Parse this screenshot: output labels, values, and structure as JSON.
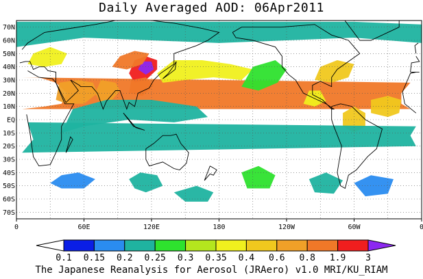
{
  "title": "Daily Averaged AOD: 06Apr2011",
  "footer": "The Japanese Reanalysis for Aerosol (JRAero) v1.0 MRI/KU_RIAM",
  "map": {
    "lon_range": [
      0,
      360
    ],
    "lat_range": [
      -75,
      75
    ],
    "lat_labels": [
      "70N",
      "60N",
      "50N",
      "40N",
      "30N",
      "20N",
      "10N",
      "EQ",
      "10S",
      "20S",
      "30S",
      "40S",
      "50S",
      "60S",
      "70S"
    ],
    "lat_values": [
      70,
      60,
      50,
      40,
      30,
      20,
      10,
      0,
      -10,
      -20,
      -30,
      -40,
      -50,
      -60,
      -70
    ],
    "lon_labels": [
      "0",
      "60E",
      "120E",
      "180",
      "120W",
      "60W",
      "0"
    ],
    "lon_values": [
      0,
      60,
      120,
      180,
      240,
      300,
      360
    ],
    "grid": "dotted",
    "coastline_color": "#000000"
  },
  "colorbar": {
    "levels": [
      "0.1",
      "0.15",
      "0.2",
      "0.25",
      "0.3",
      "0.35",
      "0.4",
      "0.6",
      "0.8",
      "1.9",
      "3"
    ],
    "colors": [
      "#ffffff",
      "#0a1ee6",
      "#2a8cf0",
      "#1fb3a0",
      "#2ee22e",
      "#b4e61e",
      "#f0f01e",
      "#f0c81e",
      "#f0a028",
      "#f07828",
      "#f01e1e",
      "#8c28f0"
    ]
  },
  "aod_regions": [
    {
      "name": "saharan-dust",
      "level": 9,
      "pts": [
        [
          -18,
          12
        ],
        [
          -18,
          20
        ],
        [
          -10,
          28
        ],
        [
          5,
          32
        ],
        [
          20,
          32
        ],
        [
          35,
          28
        ],
        [
          45,
          20
        ],
        [
          40,
          12
        ],
        [
          25,
          10
        ],
        [
          5,
          8
        ],
        [
          -10,
          8
        ]
      ]
    },
    {
      "name": "arabian-dust",
      "level": 8,
      "pts": [
        [
          35,
          15
        ],
        [
          38,
          28
        ],
        [
          55,
          30
        ],
        [
          68,
          28
        ],
        [
          72,
          20
        ],
        [
          60,
          12
        ],
        [
          45,
          12
        ]
      ]
    },
    {
      "name": "india-haze",
      "level": 8,
      "pts": [
        [
          70,
          20
        ],
        [
          75,
          30
        ],
        [
          88,
          28
        ],
        [
          92,
          22
        ],
        [
          85,
          15
        ],
        [
          75,
          12
        ]
      ]
    },
    {
      "name": "east-asia-dust",
      "level": 10,
      "pts": [
        [
          100,
          35
        ],
        [
          105,
          45
        ],
        [
          115,
          48
        ],
        [
          125,
          45
        ],
        [
          125,
          38
        ],
        [
          115,
          30
        ],
        [
          105,
          28
        ]
      ]
    },
    {
      "name": "east-asia-dust-core",
      "level": 11,
      "pts": [
        [
          108,
          38
        ],
        [
          112,
          44
        ],
        [
          120,
          44
        ],
        [
          122,
          38
        ],
        [
          115,
          34
        ]
      ]
    },
    {
      "name": "mongolia-dust",
      "level": 9,
      "pts": [
        [
          85,
          40
        ],
        [
          92,
          48
        ],
        [
          105,
          52
        ],
        [
          118,
          50
        ],
        [
          112,
          42
        ],
        [
          98,
          38
        ]
      ]
    },
    {
      "name": "china-south",
      "level": 9,
      "pts": [
        [
          100,
          20
        ],
        [
          102,
          30
        ],
        [
          115,
          32
        ],
        [
          122,
          26
        ],
        [
          112,
          18
        ]
      ]
    },
    {
      "name": "pacific-plume",
      "level": 6,
      "pts": [
        [
          125,
          35
        ],
        [
          140,
          45
        ],
        [
          165,
          45
        ],
        [
          190,
          42
        ],
        [
          210,
          38
        ],
        [
          200,
          30
        ],
        [
          175,
          32
        ],
        [
          150,
          30
        ],
        [
          130,
          28
        ]
      ]
    },
    {
      "name": "europe-haze",
      "level": 6,
      "pts": [
        [
          10,
          42
        ],
        [
          15,
          50
        ],
        [
          30,
          55
        ],
        [
          45,
          50
        ],
        [
          40,
          42
        ],
        [
          25,
          40
        ]
      ]
    },
    {
      "name": "atlantic-plume",
      "level": 7,
      "pts": [
        [
          -45,
          5
        ],
        [
          -45,
          15
        ],
        [
          -30,
          18
        ],
        [
          -18,
          15
        ],
        [
          -20,
          5
        ],
        [
          -30,
          2
        ]
      ]
    },
    {
      "name": "south-america-smoke",
      "level": 7,
      "pts": [
        [
          -70,
          -5
        ],
        [
          -70,
          5
        ],
        [
          -60,
          10
        ],
        [
          -50,
          5
        ],
        [
          -50,
          -5
        ],
        [
          -60,
          -10
        ]
      ]
    },
    {
      "name": "north-america-east",
      "level": 7,
      "pts": [
        [
          -95,
          30
        ],
        [
          -90,
          40
        ],
        [
          -75,
          45
        ],
        [
          -60,
          42
        ],
        [
          -65,
          32
        ],
        [
          -80,
          28
        ]
      ]
    },
    {
      "name": "central-america",
      "level": 6,
      "pts": [
        [
          -105,
          12
        ],
        [
          -100,
          22
        ],
        [
          -90,
          22
        ],
        [
          -85,
          14
        ],
        [
          -95,
          10
        ]
      ]
    },
    {
      "name": "north-pacific-east",
      "level": 4,
      "pts": [
        [
          200,
          25
        ],
        [
          210,
          40
        ],
        [
          230,
          45
        ],
        [
          240,
          38
        ],
        [
          232,
          28
        ],
        [
          215,
          22
        ]
      ]
    },
    {
      "name": "arctic-band",
      "level": 3,
      "pts": [
        [
          0,
          55
        ],
        [
          60,
          62
        ],
        [
          120,
          60
        ],
        [
          180,
          58
        ],
        [
          240,
          60
        ],
        [
          300,
          62
        ],
        [
          360,
          58
        ],
        [
          360,
          72
        ],
        [
          300,
          74
        ],
        [
          200,
          74
        ],
        [
          100,
          74
        ],
        [
          0,
          74
        ]
      ]
    },
    {
      "name": "tropics-band",
      "level": 3,
      "pts": [
        [
          40,
          -10
        ],
        [
          60,
          -5
        ],
        [
          100,
          0
        ],
        [
          140,
          -2
        ],
        [
          170,
          2
        ],
        [
          160,
          10
        ],
        [
          120,
          15
        ],
        [
          80,
          15
        ],
        [
          50,
          8
        ]
      ]
    },
    {
      "name": "south-atlantic",
      "level": 3,
      "pts": [
        [
          -10,
          -12
        ],
        [
          -5,
          -5
        ],
        [
          10,
          -2
        ],
        [
          15,
          -15
        ],
        [
          5,
          -25
        ],
        [
          -5,
          -20
        ]
      ]
    },
    {
      "name": "southern-ocean-1",
      "level": 2,
      "pts": [
        [
          30,
          -48
        ],
        [
          40,
          -42
        ],
        [
          55,
          -40
        ],
        [
          70,
          -45
        ],
        [
          60,
          -52
        ],
        [
          40,
          -52
        ]
      ]
    },
    {
      "name": "southern-ocean-2",
      "level": 3,
      "pts": [
        [
          100,
          -45
        ],
        [
          110,
          -40
        ],
        [
          125,
          -42
        ],
        [
          130,
          -50
        ],
        [
          115,
          -55
        ],
        [
          105,
          -52
        ]
      ]
    },
    {
      "name": "southern-ocean-3",
      "level": 4,
      "pts": [
        [
          200,
          -40
        ],
        [
          215,
          -35
        ],
        [
          230,
          -42
        ],
        [
          225,
          -52
        ],
        [
          205,
          -52
        ]
      ]
    },
    {
      "name": "southern-ocean-4",
      "level": 3,
      "pts": [
        [
          260,
          -45
        ],
        [
          275,
          -40
        ],
        [
          290,
          -46
        ],
        [
          282,
          -56
        ],
        [
          265,
          -55
        ]
      ]
    },
    {
      "name": "southern-ocean-5",
      "level": 2,
      "pts": [
        [
          300,
          -48
        ],
        [
          315,
          -42
        ],
        [
          335,
          -45
        ],
        [
          330,
          -56
        ],
        [
          310,
          -58
        ]
      ]
    },
    {
      "name": "southern-ocean-6",
      "level": 3,
      "pts": [
        [
          140,
          -55
        ],
        [
          160,
          -50
        ],
        [
          175,
          -55
        ],
        [
          170,
          -62
        ],
        [
          150,
          -62
        ]
      ]
    }
  ],
  "coastlines": [
    [
      [
        -17,
        21
      ],
      [
        -10,
        35
      ],
      [
        -5,
        36
      ],
      [
        10,
        37
      ],
      [
        20,
        32
      ],
      [
        32,
        31
      ],
      [
        35,
        28
      ],
      [
        43,
        12
      ],
      [
        51,
        12
      ],
      [
        40,
        -5
      ],
      [
        40,
        -15
      ],
      [
        35,
        -25
      ],
      [
        30,
        -34
      ],
      [
        20,
        -35
      ],
      [
        15,
        -28
      ],
      [
        12,
        -10
      ],
      [
        9,
        4
      ],
      [
        -5,
        5
      ],
      [
        -15,
        12
      ],
      [
        -17,
        21
      ]
    ],
    [
      [
        -10,
        36
      ],
      [
        -9,
        43
      ],
      [
        -2,
        44
      ],
      [
        -5,
        48
      ],
      [
        5,
        53
      ],
      [
        10,
        58
      ],
      [
        25,
        66
      ],
      [
        40,
        68
      ],
      [
        70,
        72
      ],
      [
        100,
        77
      ],
      [
        140,
        73
      ],
      [
        165,
        69
      ],
      [
        180,
        66
      ],
      [
        170,
        60
      ],
      [
        160,
        56
      ],
      [
        140,
        50
      ],
      [
        140,
        42
      ],
      [
        128,
        35
      ],
      [
        122,
        30
      ],
      [
        118,
        24
      ],
      [
        108,
        20
      ],
      [
        105,
        10
      ],
      [
        100,
        13
      ],
      [
        98,
        8
      ],
      [
        92,
        22
      ],
      [
        88,
        22
      ],
      [
        80,
        14
      ],
      [
        77,
        8
      ],
      [
        72,
        20
      ],
      [
        67,
        25
      ],
      [
        57,
        25
      ],
      [
        56,
        26
      ],
      [
        48,
        30
      ],
      [
        55,
        22
      ],
      [
        44,
        13
      ],
      [
        35,
        28
      ],
      [
        35,
        36
      ],
      [
        28,
        37
      ],
      [
        25,
        40
      ],
      [
        20,
        40
      ],
      [
        15,
        38
      ],
      [
        12,
        44
      ],
      [
        8,
        44
      ],
      [
        3,
        43
      ],
      [
        -2,
        36
      ],
      [
        -10,
        36
      ]
    ],
    [
      [
        -168,
        66
      ],
      [
        -160,
        70
      ],
      [
        -140,
        70
      ],
      [
        -125,
        70
      ],
      [
        -95,
        72
      ],
      [
        -80,
        64
      ],
      [
        -65,
        60
      ],
      [
        -55,
        50
      ],
      [
        -65,
        44
      ],
      [
        -75,
        38
      ],
      [
        -80,
        32
      ],
      [
        -80,
        25
      ],
      [
        -90,
        29
      ],
      [
        -97,
        26
      ],
      [
        -97,
        19
      ],
      [
        -88,
        15
      ],
      [
        -80,
        8
      ],
      [
        -78,
        8
      ],
      [
        -85,
        12
      ],
      [
        -95,
        16
      ],
      [
        -105,
        20
      ],
      [
        -112,
        30
      ],
      [
        -118,
        34
      ],
      [
        -124,
        40
      ],
      [
        -124,
        48
      ],
      [
        -130,
        55
      ],
      [
        -150,
        60
      ],
      [
        -165,
        62
      ],
      [
        -168,
        66
      ]
    ],
    [
      [
        -80,
        10
      ],
      [
        -72,
        12
      ],
      [
        -62,
        10
      ],
      [
        -50,
        0
      ],
      [
        -35,
        -7
      ],
      [
        -40,
        -22
      ],
      [
        -48,
        -28
      ],
      [
        -58,
        -38
      ],
      [
        -65,
        -42
      ],
      [
        -68,
        -52
      ],
      [
        -72,
        -50
      ],
      [
        -75,
        -40
      ],
      [
        -71,
        -20
      ],
      [
        -78,
        -5
      ],
      [
        -80,
        0
      ],
      [
        -80,
        10
      ]
    ],
    [
      [
        115,
        -22
      ],
      [
        122,
        -18
      ],
      [
        130,
        -12
      ],
      [
        137,
        -12
      ],
      [
        142,
        -11
      ],
      [
        146,
        -18
      ],
      [
        153,
        -25
      ],
      [
        151,
        -33
      ],
      [
        145,
        -38
      ],
      [
        140,
        -37
      ],
      [
        130,
        -32
      ],
      [
        118,
        -35
      ],
      [
        115,
        -30
      ],
      [
        115,
        -22
      ]
    ],
    [
      [
        130,
        31
      ],
      [
        135,
        34
      ],
      [
        141,
        38
      ],
      [
        142,
        44
      ],
      [
        140,
        41
      ],
      [
        135,
        35
      ],
      [
        130,
        31
      ]
    ],
    [
      [
        95,
        5
      ],
      [
        106,
        -6
      ],
      [
        114,
        -8
      ],
      [
        104,
        -5
      ],
      [
        95,
        5
      ]
    ],
    [
      [
        172,
        -35
      ],
      [
        178,
        -38
      ],
      [
        175,
        -42
      ],
      [
        172,
        -41
      ],
      [
        167,
        -46
      ],
      [
        172,
        -35
      ]
    ],
    [
      [
        44,
        -25
      ],
      [
        50,
        -15
      ],
      [
        48,
        -13
      ],
      [
        44,
        -25
      ]
    ],
    [
      [
        -55,
        60
      ],
      [
        -45,
        60
      ],
      [
        -20,
        70
      ],
      [
        -20,
        80
      ],
      [
        -55,
        78
      ],
      [
        -70,
        77
      ],
      [
        -55,
        60
      ]
    ],
    [
      [
        -5,
        50
      ],
      [
        2,
        52
      ],
      [
        -3,
        58
      ],
      [
        -6,
        56
      ],
      [
        -5,
        50
      ]
    ]
  ]
}
